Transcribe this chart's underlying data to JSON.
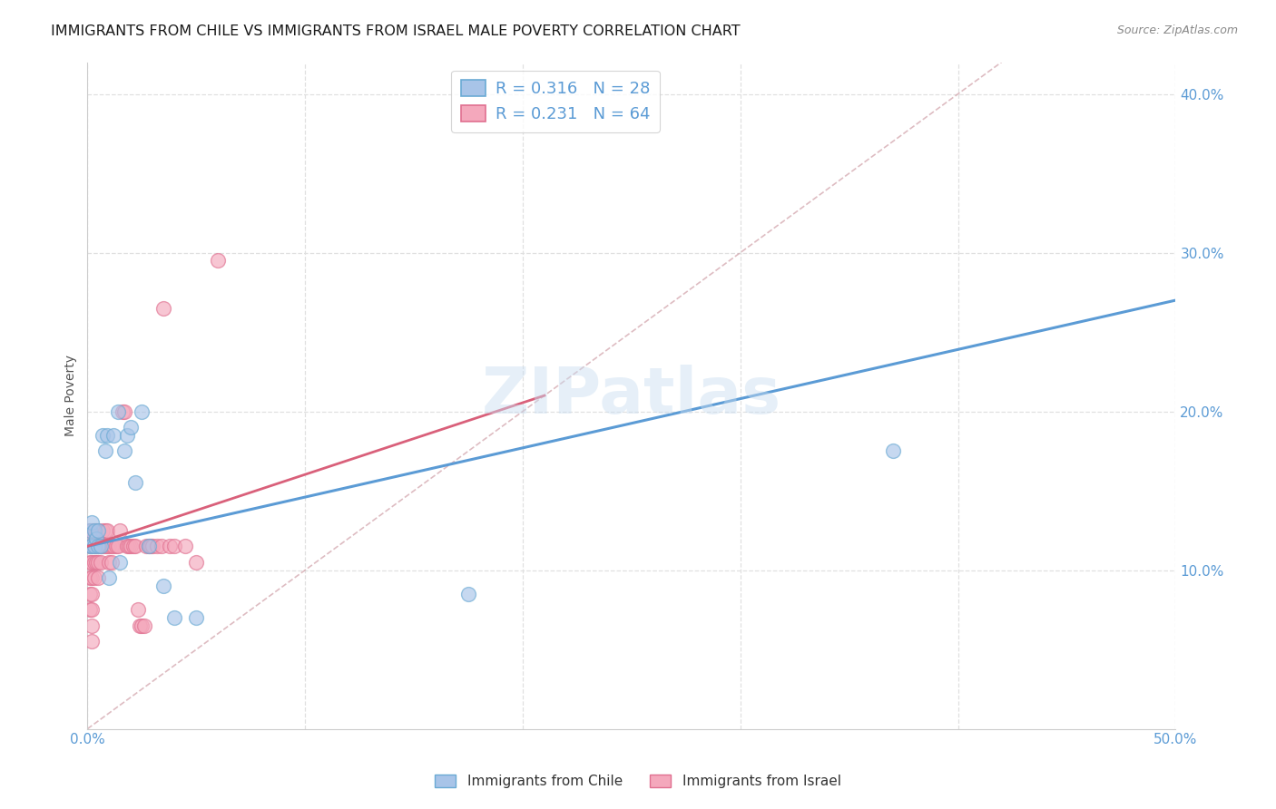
{
  "title": "IMMIGRANTS FROM CHILE VS IMMIGRANTS FROM ISRAEL MALE POVERTY CORRELATION CHART",
  "source": "Source: ZipAtlas.com",
  "ylabel": "Male Poverty",
  "watermark": "ZIPatlas",
  "xlim": [
    0.0,
    0.5
  ],
  "ylim": [
    0.0,
    0.42
  ],
  "xticks": [
    0.0,
    0.1,
    0.2,
    0.3,
    0.4,
    0.5
  ],
  "xticklabels": [
    "0.0%",
    "",
    "",
    "",
    "",
    "50.0%"
  ],
  "yticks": [
    0.1,
    0.2,
    0.3,
    0.4
  ],
  "yticklabels": [
    "10.0%",
    "20.0%",
    "30.0%",
    "40.0%"
  ],
  "chile_color": "#a8c4e8",
  "israel_color": "#f4a8bc",
  "chile_edge_color": "#6aaad4",
  "israel_edge_color": "#e07090",
  "chile_line_color": "#5b9bd5",
  "israel_line_color": "#d9607a",
  "R_chile": 0.316,
  "N_chile": 28,
  "R_israel": 0.231,
  "N_israel": 64,
  "legend_label_chile": "Immigrants from Chile",
  "legend_label_israel": "Immigrants from Israel",
  "chile_x": [
    0.001,
    0.001,
    0.002,
    0.002,
    0.003,
    0.003,
    0.004,
    0.005,
    0.005,
    0.006,
    0.007,
    0.008,
    0.009,
    0.01,
    0.012,
    0.014,
    0.015,
    0.017,
    0.018,
    0.02,
    0.022,
    0.025,
    0.028,
    0.035,
    0.04,
    0.05,
    0.175,
    0.37
  ],
  "chile_y": [
    0.115,
    0.125,
    0.13,
    0.115,
    0.125,
    0.115,
    0.12,
    0.115,
    0.125,
    0.115,
    0.185,
    0.175,
    0.185,
    0.095,
    0.185,
    0.2,
    0.105,
    0.175,
    0.185,
    0.19,
    0.155,
    0.2,
    0.115,
    0.09,
    0.07,
    0.07,
    0.085,
    0.175
  ],
  "israel_x": [
    0.001,
    0.001,
    0.001,
    0.001,
    0.001,
    0.001,
    0.002,
    0.002,
    0.002,
    0.002,
    0.002,
    0.002,
    0.002,
    0.002,
    0.003,
    0.003,
    0.003,
    0.003,
    0.004,
    0.004,
    0.004,
    0.005,
    0.005,
    0.005,
    0.005,
    0.006,
    0.006,
    0.007,
    0.007,
    0.008,
    0.008,
    0.009,
    0.009,
    0.01,
    0.01,
    0.011,
    0.011,
    0.012,
    0.013,
    0.014,
    0.015,
    0.016,
    0.017,
    0.018,
    0.019,
    0.02,
    0.021,
    0.022,
    0.023,
    0.024,
    0.025,
    0.026,
    0.027,
    0.028,
    0.029,
    0.03,
    0.032,
    0.034,
    0.035,
    0.038,
    0.04,
    0.045,
    0.05,
    0.06
  ],
  "israel_y": [
    0.125,
    0.115,
    0.105,
    0.095,
    0.085,
    0.075,
    0.125,
    0.115,
    0.105,
    0.095,
    0.085,
    0.075,
    0.065,
    0.055,
    0.125,
    0.115,
    0.105,
    0.095,
    0.125,
    0.115,
    0.105,
    0.125,
    0.115,
    0.105,
    0.095,
    0.115,
    0.105,
    0.125,
    0.115,
    0.125,
    0.115,
    0.125,
    0.115,
    0.115,
    0.105,
    0.115,
    0.105,
    0.115,
    0.115,
    0.115,
    0.125,
    0.2,
    0.2,
    0.115,
    0.115,
    0.115,
    0.115,
    0.115,
    0.075,
    0.065,
    0.065,
    0.065,
    0.115,
    0.115,
    0.115,
    0.115,
    0.115,
    0.115,
    0.265,
    0.115,
    0.115,
    0.115,
    0.105,
    0.295
  ],
  "chile_line_x": [
    0.0,
    0.5
  ],
  "chile_line_y": [
    0.115,
    0.27
  ],
  "israel_line_x": [
    0.0,
    0.21
  ],
  "israel_line_y": [
    0.115,
    0.21
  ],
  "diag_line_color": "#d0a0a8",
  "background_color": "#ffffff",
  "grid_color": "#e0e0e0",
  "tick_color": "#5b9bd5",
  "title_fontsize": 11.5,
  "source_fontsize": 9,
  "tick_fontsize": 11,
  "ylabel_fontsize": 10
}
